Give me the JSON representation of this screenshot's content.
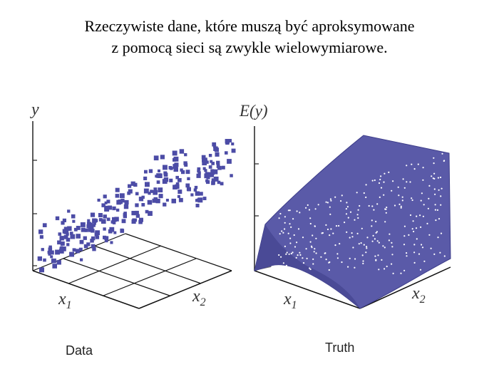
{
  "title": {
    "line1": "Rzeczywiste dane, które muszą być aproksymowane",
    "line2": "z pomocą sieci są zwykle wielowymiarowe."
  },
  "panels": {
    "data": {
      "y_label": "y",
      "x1_label": "x",
      "x1_sub": "1",
      "x2_label": "x",
      "x2_sub": "2",
      "caption": "Data"
    },
    "truth": {
      "y_label": "E(y)",
      "x1_label": "x",
      "x1_sub": "1",
      "x2_label": "x",
      "x2_sub": "2",
      "caption": "Truth"
    }
  },
  "colors": {
    "points": "#4c4ca6",
    "surface": "#5a5aa8",
    "surface_dark": "#4a4a96",
    "side_face": "#6a6a7a",
    "axis": "#222222",
    "grid": "#111111"
  }
}
